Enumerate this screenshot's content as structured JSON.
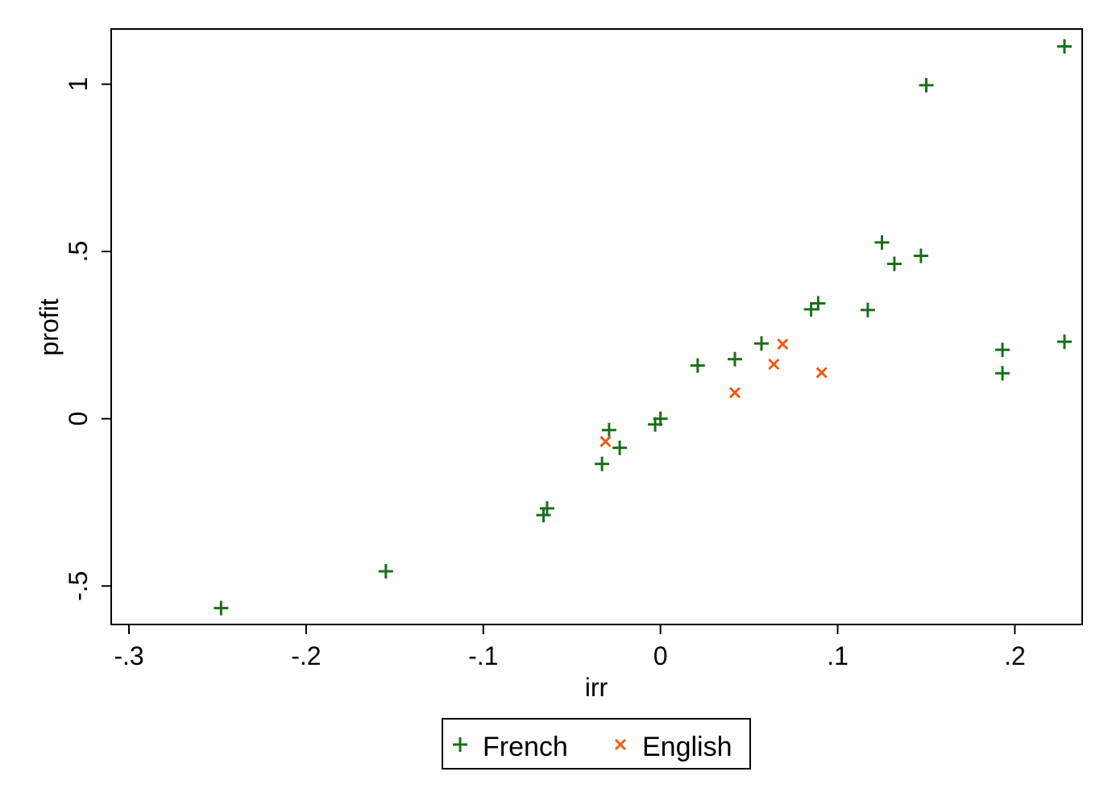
{
  "chart_data": {
    "type": "scatter",
    "xlabel": "irr",
    "ylabel": "profit",
    "xlim": [
      -0.31,
      0.238
    ],
    "ylim": [
      -0.615,
      1.165
    ],
    "xticks": [
      {
        "value": -0.3,
        "label": "-.3"
      },
      {
        "value": -0.2,
        "label": "-.2"
      },
      {
        "value": -0.1,
        "label": "-.1"
      },
      {
        "value": 0,
        "label": "0"
      },
      {
        "value": 0.1,
        "label": ".1"
      },
      {
        "value": 0.2,
        "label": ".2"
      }
    ],
    "yticks": [
      {
        "value": -0.5,
        "label": "-.5"
      },
      {
        "value": 0,
        "label": "0"
      },
      {
        "value": 0.5,
        "label": ".5"
      },
      {
        "value": 1,
        "label": "1"
      }
    ],
    "grid": false,
    "legend_position": "bottom",
    "series": [
      {
        "name": "French",
        "marker": "plus",
        "color": "#1a6e1a",
        "points": [
          {
            "x": -0.248,
            "y": -0.566
          },
          {
            "x": -0.155,
            "y": -0.456
          },
          {
            "x": -0.066,
            "y": -0.288
          },
          {
            "x": -0.064,
            "y": -0.268
          },
          {
            "x": -0.033,
            "y": -0.135
          },
          {
            "x": -0.029,
            "y": -0.034
          },
          {
            "x": -0.023,
            "y": -0.087
          },
          {
            "x": -0.003,
            "y": -0.017
          },
          {
            "x": 0.0,
            "y": 0.0
          },
          {
            "x": 0.021,
            "y": 0.159
          },
          {
            "x": 0.042,
            "y": 0.178
          },
          {
            "x": 0.057,
            "y": 0.225
          },
          {
            "x": 0.085,
            "y": 0.327
          },
          {
            "x": 0.089,
            "y": 0.345
          },
          {
            "x": 0.117,
            "y": 0.325
          },
          {
            "x": 0.125,
            "y": 0.527
          },
          {
            "x": 0.132,
            "y": 0.463
          },
          {
            "x": 0.147,
            "y": 0.487
          },
          {
            "x": 0.15,
            "y": 0.997
          },
          {
            "x": 0.193,
            "y": 0.206
          },
          {
            "x": 0.193,
            "y": 0.136
          },
          {
            "x": 0.228,
            "y": 1.113
          },
          {
            "x": 0.228,
            "y": 0.23
          }
        ]
      },
      {
        "name": "English",
        "marker": "x",
        "color": "#f05a14",
        "points": [
          {
            "x": -0.031,
            "y": -0.068
          },
          {
            "x": 0.042,
            "y": 0.078
          },
          {
            "x": 0.064,
            "y": 0.163
          },
          {
            "x": 0.069,
            "y": 0.223
          },
          {
            "x": 0.091,
            "y": 0.138
          }
        ]
      }
    ]
  }
}
